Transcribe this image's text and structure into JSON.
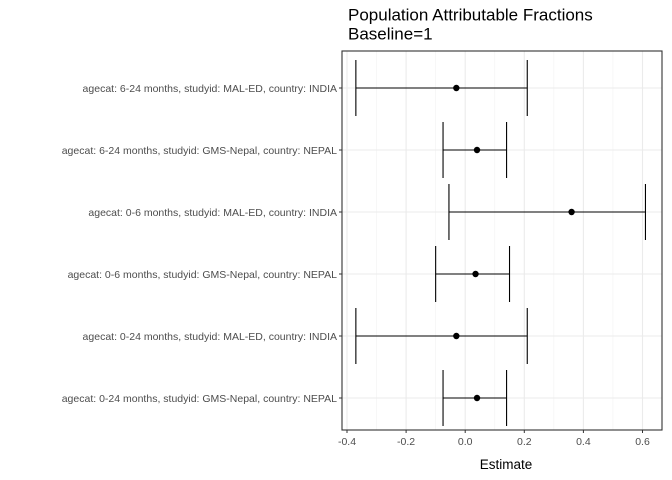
{
  "chart_data": {
    "type": "scatter",
    "title": "Population Attributable Fractions",
    "subtitle": "Baseline=1",
    "xlabel": "Estimate",
    "ylabel": "",
    "xlim": [
      -0.41,
      0.66
    ],
    "x_ticks": [
      -0.4,
      -0.2,
      0.0,
      0.2,
      0.4,
      0.6
    ],
    "x_tick_labels": [
      "-0.4",
      "-0.2",
      "0.0",
      "0.2",
      "0.4",
      "0.6"
    ],
    "grid": true,
    "categories": [
      "agecat: 6-24 months, studyid: MAL-ED, country: INDIA",
      "agecat: 6-24 months, studyid: GMS-Nepal, country: NEPAL",
      "agecat: 0-6 months, studyid: MAL-ED, country: INDIA",
      "agecat: 0-6 months, studyid: GMS-Nepal, country: NEPAL",
      "agecat: 0-24 months, studyid: MAL-ED, country: INDIA",
      "agecat: 0-24 months, studyid: GMS-Nepal, country: NEPAL"
    ],
    "estimates": [
      -0.03,
      0.04,
      0.36,
      0.035,
      -0.03,
      0.04
    ],
    "ci_lower": [
      -0.37,
      -0.075,
      -0.055,
      -0.1,
      -0.37,
      -0.075
    ],
    "ci_upper": [
      0.21,
      0.14,
      0.61,
      0.15,
      0.21,
      0.14
    ]
  }
}
